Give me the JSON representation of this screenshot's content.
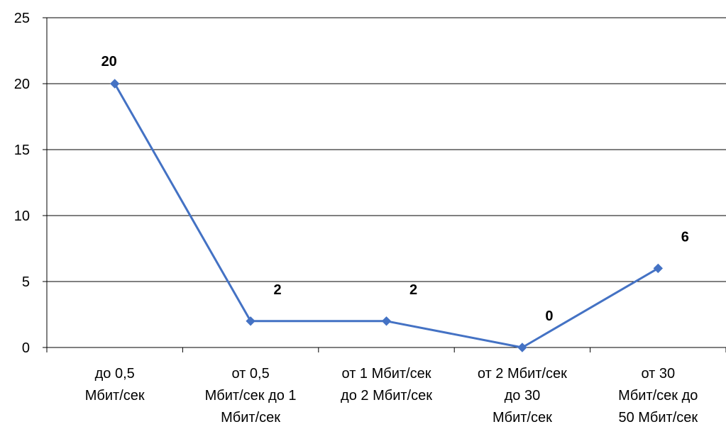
{
  "chart_data": {
    "type": "line",
    "categories": [
      [
        "до 0,5",
        "Мбит/сек"
      ],
      [
        "от 0,5",
        "Мбит/сек до 1",
        "Мбит/сек"
      ],
      [
        "от 1 Мбит/сек",
        "до 2 Мбит/сек"
      ],
      [
        "от 2 Мбит/сек",
        "до 30",
        "Мбит/сек"
      ],
      [
        "от 30",
        "Мбит/сек до",
        "50 Мбит/сек"
      ]
    ],
    "values": [
      20,
      2,
      2,
      0,
      6
    ],
    "data_labels": [
      "20",
      "2",
      "2",
      "0",
      "6"
    ],
    "y_ticks": [
      0,
      5,
      10,
      15,
      20,
      25
    ],
    "y_tick_labels": [
      "0",
      "5",
      "10",
      "15",
      "20",
      "25"
    ],
    "ylim": [
      0,
      25
    ],
    "grid": true,
    "legend": "none",
    "colors": {
      "line": "#4472C4",
      "grid": "#000000",
      "axis": "#000000"
    }
  }
}
